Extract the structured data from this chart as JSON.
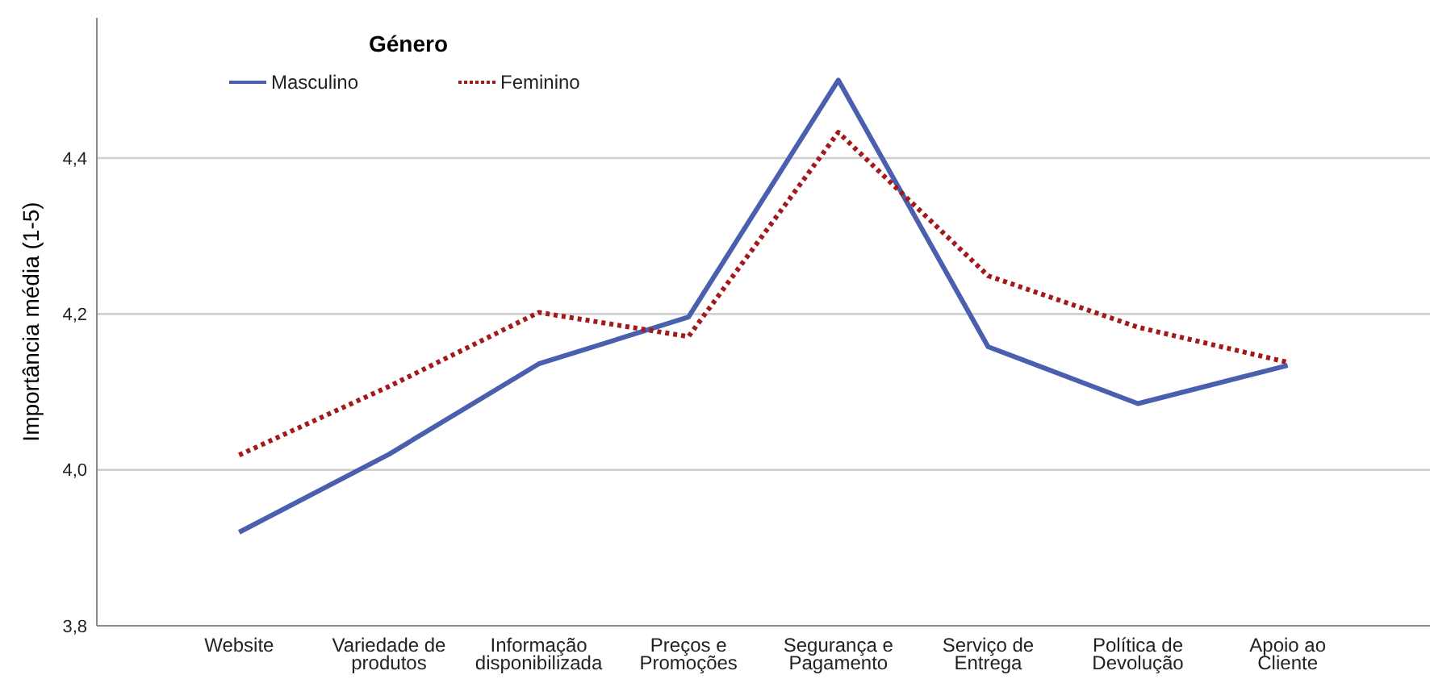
{
  "chart_data": {
    "type": "line",
    "ylabel": "Importância média (1-5)",
    "legend_title": "Género",
    "legend": "top left",
    "grid": "y",
    "categories": [
      "Website",
      "Variedade de produtos",
      "Informação disponibilizada",
      "Preços e Promoções",
      "Segurança e Pagamento",
      "Serviço de Entrega",
      "Política de Devolução",
      "Apoio ao Cliente"
    ],
    "ylim": [
      3.8,
      4.58
    ],
    "yticks": [
      {
        "value": 3.8,
        "label": "3,8"
      },
      {
        "value": 4.0,
        "label": "4,0"
      },
      {
        "value": 4.2,
        "label": "4,2"
      },
      {
        "value": 4.4,
        "label": "4,4"
      }
    ],
    "series": [
      {
        "name": "Masculino",
        "color": "#4a5fae",
        "line_style": "solid",
        "values": [
          3.92,
          4.02,
          4.136,
          4.196,
          4.5,
          4.158,
          4.085,
          4.134
        ]
      },
      {
        "name": "Feminino",
        "color": "#a31a1a",
        "line_style": "dotted",
        "values": [
          4.019,
          4.107,
          4.202,
          4.171,
          4.433,
          4.249,
          4.183,
          4.138
        ]
      }
    ]
  }
}
